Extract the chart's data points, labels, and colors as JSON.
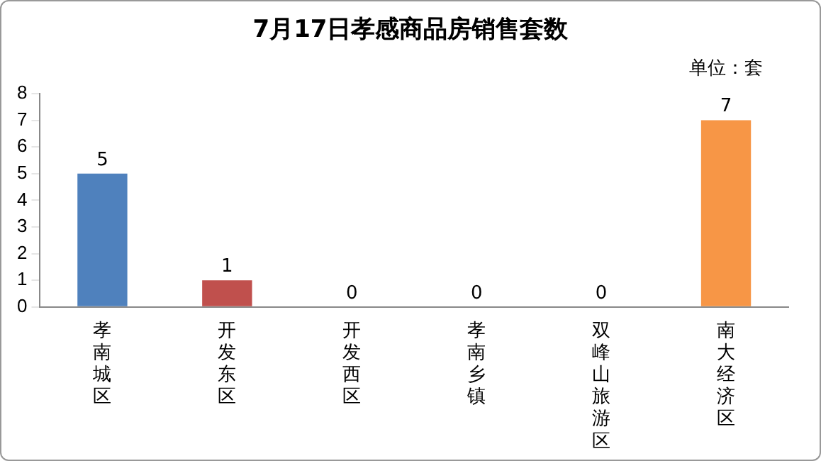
{
  "chart_data": {
    "type": "bar",
    "title": "7月17日孝感商品房销售套数",
    "annotations": [
      "单位：套"
    ],
    "categories": [
      "孝南城区",
      "开发东区",
      "开发西区",
      "孝南乡镇",
      "双峰山旅游区",
      "南大经济区"
    ],
    "values": [
      5,
      1,
      0,
      0,
      0,
      7
    ],
    "colors": [
      "#4f81bd",
      "#c0504d",
      "#9bbb59",
      "#8064a2",
      "#4bacc6",
      "#f79646"
    ],
    "ylim": [
      0,
      8
    ],
    "yticks": [
      0,
      1,
      2,
      3,
      4,
      5,
      6,
      7,
      8
    ],
    "grid": false,
    "data_labels": true,
    "legend": false
  }
}
